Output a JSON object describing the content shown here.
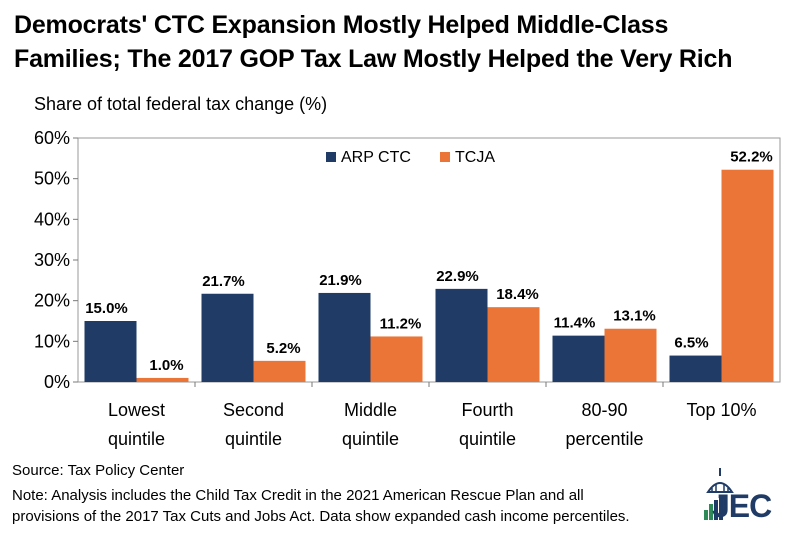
{
  "title": {
    "line1": "Democrats' CTC Expansion Mostly Helped Middle-Class",
    "line2": "Families; The 2017 GOP Tax Law Mostly Helped the Very Rich"
  },
  "chart_data": {
    "type": "bar",
    "ylabel": "Share of total federal tax change (%)",
    "ylim": [
      0,
      60
    ],
    "yticks": [
      "0%",
      "10%",
      "20%",
      "30%",
      "40%",
      "50%",
      "60%"
    ],
    "categories": [
      [
        "Lowest",
        "quintile"
      ],
      [
        "Second",
        "quintile"
      ],
      [
        "Middle",
        "quintile"
      ],
      [
        "Fourth",
        "quintile"
      ],
      [
        "80-90",
        "percentile"
      ],
      [
        "Top 10%"
      ]
    ],
    "series": [
      {
        "name": "ARP CTC",
        "color": "#1f3b66",
        "values": [
          15.0,
          21.7,
          21.9,
          22.9,
          11.4,
          6.5
        ],
        "labels": [
          "15.0%",
          "21.7%",
          "21.9%",
          "22.9%",
          "11.4%",
          "6.5%"
        ]
      },
      {
        "name": "TCJA",
        "color": "#ea7536",
        "values": [
          1.0,
          5.2,
          11.2,
          18.4,
          13.1,
          52.2
        ],
        "labels": [
          "1.0%",
          "5.2%",
          "11.2%",
          "18.4%",
          "13.1%",
          "52.2%"
        ]
      }
    ],
    "grid": false,
    "legend": "top-center"
  },
  "footer": {
    "source": "Source: Tax Policy Center",
    "note_line1": "Note: Analysis includes the Child Tax Credit in the 2021 American Rescue Plan and all",
    "note_line2": "provisions of the 2017 Tax Cuts and Jobs Act. Data show expanded cash income percentiles."
  },
  "logo": {
    "text": "JEC",
    "icon": "capitol-dome-icon"
  }
}
